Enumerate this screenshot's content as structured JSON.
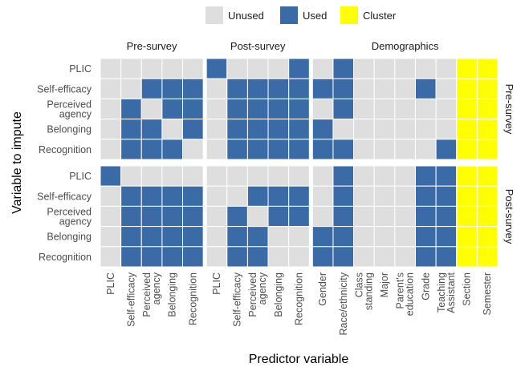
{
  "chart_data": {
    "type": "heatmap",
    "x_label": "Predictor variable",
    "y_label": "Variable to impute",
    "legend": [
      {
        "name": "Unused",
        "color": "#dedede"
      },
      {
        "name": "Used",
        "color": "#3a6ba7"
      },
      {
        "name": "Cluster",
        "color": "#ffff00"
      }
    ],
    "column_facets": [
      {
        "name": "Pre-survey",
        "columns": [
          [
            "PLIC"
          ],
          [
            "Self-efficacy"
          ],
          [
            "Perceived",
            "agency"
          ],
          [
            "Belonging"
          ],
          [
            "Recognition"
          ]
        ]
      },
      {
        "name": "Post-survey",
        "columns": [
          [
            "PLIC"
          ],
          [
            "Self-efficacy"
          ],
          [
            "Perceived",
            "agency"
          ],
          [
            "Belonging"
          ],
          [
            "Recognition"
          ]
        ]
      },
      {
        "name": "Demographics",
        "columns": [
          [
            "Gender"
          ],
          [
            "Race/ethnicity"
          ],
          [
            "Class",
            "standing"
          ],
          [
            "Major"
          ],
          [
            "Parent's",
            "education"
          ],
          [
            "Grade"
          ],
          [
            "Teaching",
            "Assistant"
          ],
          [
            "Section"
          ],
          [
            "Semester"
          ]
        ]
      }
    ],
    "row_facets": [
      {
        "name": "Pre-survey",
        "rows": [
          [
            "PLIC"
          ],
          [
            "Self-efficacy"
          ],
          [
            "Perceived",
            "agency"
          ],
          [
            "Belonging"
          ],
          [
            "Recognition"
          ]
        ],
        "cells": [
          [
            0,
            0,
            0,
            0,
            0,
            1,
            0,
            0,
            0,
            1,
            0,
            1,
            0,
            0,
            0,
            0,
            0,
            2,
            2
          ],
          [
            0,
            0,
            1,
            1,
            1,
            0,
            1,
            1,
            1,
            1,
            1,
            1,
            0,
            0,
            0,
            1,
            0,
            2,
            2
          ],
          [
            0,
            1,
            0,
            1,
            1,
            0,
            1,
            1,
            1,
            1,
            0,
            1,
            0,
            0,
            0,
            0,
            0,
            2,
            2
          ],
          [
            0,
            1,
            1,
            0,
            1,
            0,
            1,
            1,
            1,
            1,
            1,
            0,
            0,
            0,
            0,
            0,
            0,
            2,
            2
          ],
          [
            0,
            1,
            1,
            1,
            0,
            0,
            1,
            1,
            1,
            1,
            1,
            1,
            0,
            0,
            0,
            0,
            1,
            2,
            2
          ]
        ]
      },
      {
        "name": "Post-survey",
        "rows": [
          [
            "PLIC"
          ],
          [
            "Self-efficacy"
          ],
          [
            "Perceived",
            "agency"
          ],
          [
            "Belonging"
          ],
          [
            "Recognition"
          ]
        ],
        "cells": [
          [
            1,
            0,
            0,
            0,
            0,
            0,
            0,
            0,
            0,
            0,
            0,
            1,
            0,
            0,
            0,
            1,
            1,
            2,
            2
          ],
          [
            0,
            1,
            1,
            1,
            1,
            0,
            0,
            1,
            1,
            1,
            0,
            1,
            0,
            0,
            0,
            1,
            1,
            2,
            2
          ],
          [
            0,
            1,
            1,
            1,
            1,
            0,
            1,
            0,
            1,
            1,
            0,
            1,
            0,
            0,
            0,
            1,
            1,
            2,
            2
          ],
          [
            0,
            1,
            1,
            1,
            1,
            0,
            1,
            1,
            0,
            0,
            1,
            1,
            0,
            0,
            0,
            1,
            1,
            2,
            2
          ],
          [
            0,
            1,
            1,
            1,
            1,
            0,
            1,
            1,
            0,
            0,
            1,
            1,
            0,
            0,
            0,
            1,
            1,
            2,
            2
          ]
        ]
      }
    ]
  }
}
